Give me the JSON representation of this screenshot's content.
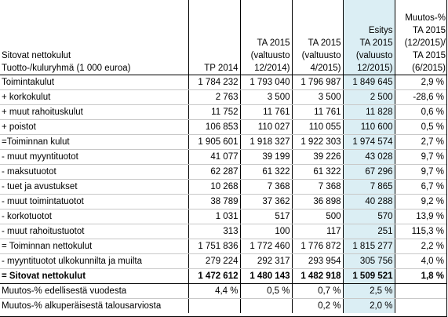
{
  "table": {
    "headers": {
      "label_line1": "Sitovat nettokulut",
      "label_line2": "Tuotto-/kuluryhmä (1 000 euroa)",
      "tp2014": "TP 2014",
      "ta2015_v12_line1": "TA 2015",
      "ta2015_v12_line2": "(valtuusto",
      "ta2015_v12_line3": "12/2014)",
      "ta2015_v4_line1": "TA 2015",
      "ta2015_v4_line2": "(valtuusto",
      "ta2015_v4_line3": "4/2015)",
      "esitys_line1": "Esitys",
      "esitys_line2": "TA 2015",
      "esitys_line3": "(valuusto",
      "esitys_line4": "12/2015)",
      "muutos_line1": "Muutos-%",
      "muutos_line2": "TA 2015",
      "muutos_line3": "(12/2015)/",
      "muutos_line4": "TA 2015",
      "muutos_line5": "(6/2015)"
    },
    "rows": [
      {
        "label": "Toimintakulut",
        "tp2014": "1 784 232",
        "ta_v12": "1 793 040",
        "ta_v4": "1 796 987",
        "esitys": "1 849 645",
        "muutos": "2,9 %"
      },
      {
        "label": "+ korkokulut",
        "tp2014": "2 763",
        "ta_v12": "3 500",
        "ta_v4": "3 500",
        "esitys": "2 500",
        "muutos": "-28,6 %"
      },
      {
        "label": "+ muut rahoituskulut",
        "tp2014": "11 752",
        "ta_v12": "11 761",
        "ta_v4": "11 761",
        "esitys": "11 828",
        "muutos": "0,6 %"
      },
      {
        "label": "+ poistot",
        "tp2014": "106 853",
        "ta_v12": "110 027",
        "ta_v4": "110 055",
        "esitys": "110 600",
        "muutos": "0,5 %"
      },
      {
        "label": "=Toiminnan kulut",
        "tp2014": "1 905 601",
        "ta_v12": "1 918 327",
        "ta_v4": "1 922 303",
        "esitys": "1 974 574",
        "muutos": "2,7 %"
      },
      {
        "label": "- muut myyntituotot",
        "tp2014": "41 077",
        "ta_v12": "39 199",
        "ta_v4": "39 226",
        "esitys": "43 028",
        "muutos": "9,7 %"
      },
      {
        "label": "- maksutuotot",
        "tp2014": "62 287",
        "ta_v12": "61 322",
        "ta_v4": "61 322",
        "esitys": "67 296",
        "muutos": "9,7 %"
      },
      {
        "label": "- tuet ja avustukset",
        "tp2014": "10 268",
        "ta_v12": "7 368",
        "ta_v4": "7 368",
        "esitys": "7 865",
        "muutos": "6,7 %"
      },
      {
        "label": "- muut toimintatuotot",
        "tp2014": "38 789",
        "ta_v12": "37 362",
        "ta_v4": "36 898",
        "esitys": "40 288",
        "muutos": "9,2 %"
      },
      {
        "label": "- korkotuotot",
        "tp2014": "1 031",
        "ta_v12": "517",
        "ta_v4": "500",
        "esitys": "570",
        "muutos": "13,9 %"
      },
      {
        "label": "- muut rahoitustuotot",
        "tp2014": "313",
        "ta_v12": "100",
        "ta_v4": "117",
        "esitys": "251",
        "muutos": "115,3 %"
      },
      {
        "label": "= Toiminnan nettokulut",
        "tp2014": "1 751 836",
        "ta_v12": "1 772 460",
        "ta_v4": "1 776 872",
        "esitys": "1 815 277",
        "muutos": "2,2 %"
      },
      {
        "label": "- myyntituotot ulkokunnilta ja muilta",
        "tp2014": "279 224",
        "ta_v12": "292 317",
        "ta_v4": "293 954",
        "esitys": "305 756",
        "muutos": "4,0 %"
      }
    ],
    "total": {
      "label": "= Sitovat nettokulut",
      "tp2014": "1 472 612",
      "ta_v12": "1 480 143",
      "ta_v4": "1 482 918",
      "esitys": "1 509 521",
      "muutos": "1,8 %"
    },
    "footer": [
      {
        "label": "Muutos-% edellisestä vuodesta",
        "tp2014": "4,4 %",
        "ta_v12": "0,5 %",
        "ta_v4": "0,7 %",
        "esitys": "2,5 %",
        "muutos": ""
      },
      {
        "label": "Muutos-% alkuperäisestä talousarviosta",
        "tp2014": "",
        "ta_v12": "",
        "ta_v4": "0,2 %",
        "esitys": "2,0 %",
        "muutos": ""
      }
    ],
    "colors": {
      "esitys_highlight": "#dbeef4",
      "grid": "#c8c8c8"
    }
  }
}
